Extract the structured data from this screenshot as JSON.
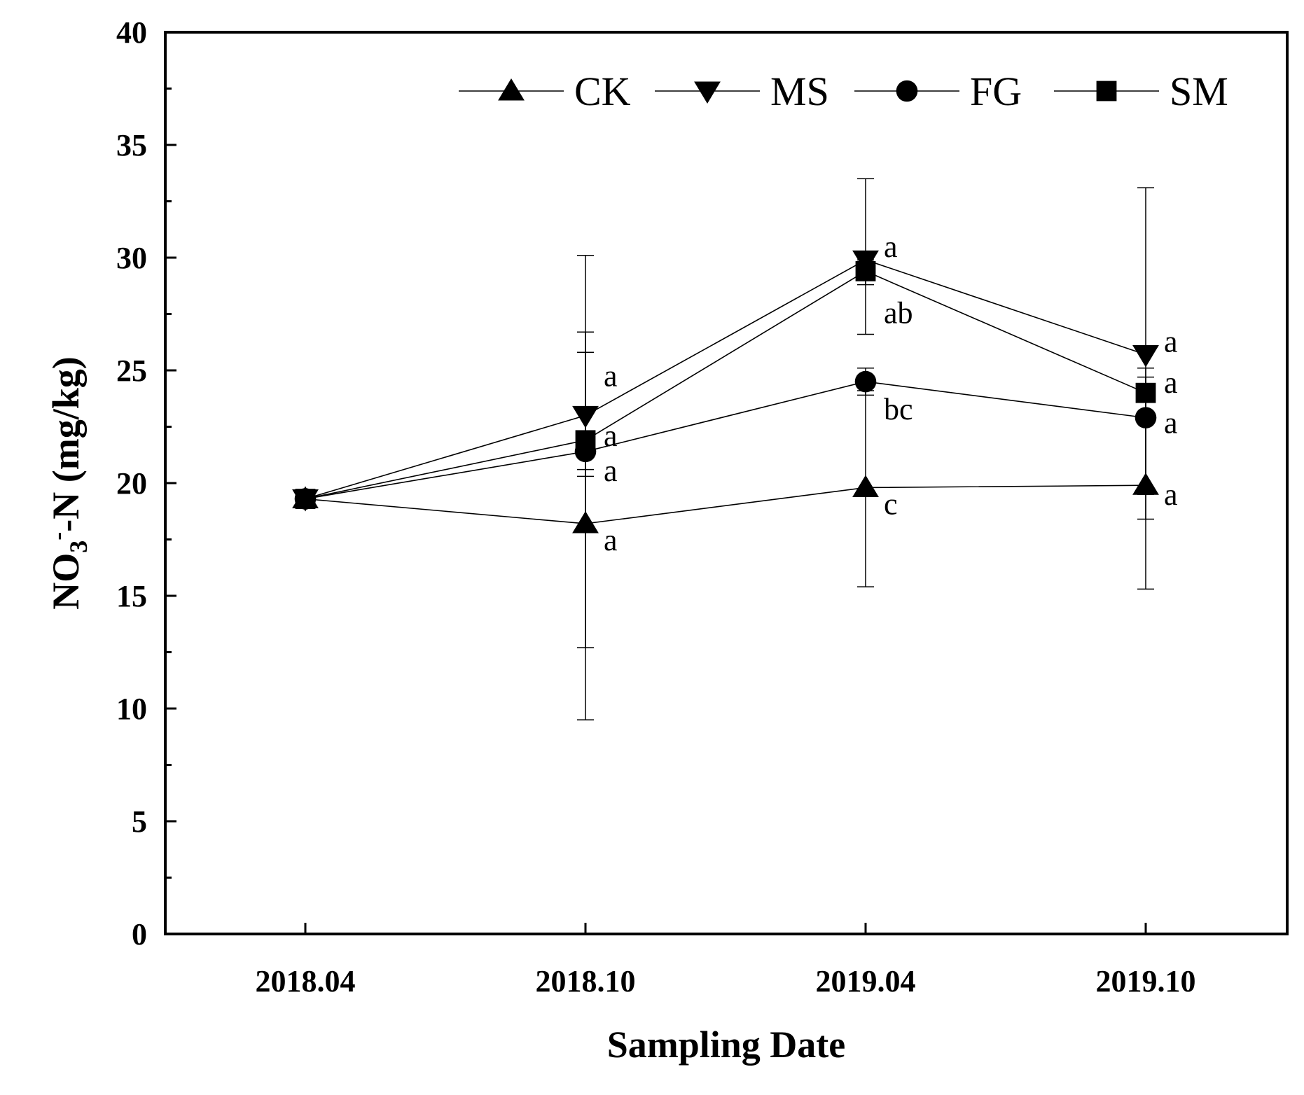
{
  "chart_data": {
    "type": "line",
    "title": "",
    "xlabel": "Sampling Date",
    "ylabel": {
      "prefix": "NO",
      "subscript": "3",
      "superscript": "-",
      "suffix": "-N (mg/kg)"
    },
    "categories": [
      "2018.04",
      "2018.10",
      "2019.04",
      "2019.10"
    ],
    "ylim": [
      0,
      40
    ],
    "yticks": [
      0,
      5,
      10,
      15,
      20,
      25,
      30,
      35,
      40
    ],
    "legend_position": "top-right",
    "series": [
      {
        "name": "CK",
        "marker": "triangle-up",
        "values": [
          19.3,
          18.2,
          19.8,
          19.9
        ],
        "error_low": [
          null,
          9.5,
          15.4,
          15.3
        ],
        "error_high": [
          null,
          26.7,
          24.1,
          24.4
        ],
        "labels": [
          null,
          "a",
          "c",
          "a"
        ]
      },
      {
        "name": "MS",
        "marker": "triangle-down",
        "values": [
          19.3,
          23.0,
          29.9,
          25.7
        ],
        "error_low": [
          null,
          12.7,
          26.6,
          18.4
        ],
        "error_high": [
          null,
          30.1,
          33.5,
          33.1
        ],
        "labels": [
          null,
          "a",
          "a",
          "a"
        ]
      },
      {
        "name": "FG",
        "marker": "circle",
        "values": [
          19.3,
          21.4,
          24.5,
          22.9
        ],
        "error_low": [
          null,
          20.6,
          23.9,
          19.5
        ],
        "error_high": [
          null,
          22.2,
          25.1,
          24.7
        ],
        "labels": [
          null,
          "a",
          "bc",
          "a"
        ]
      },
      {
        "name": "SM",
        "marker": "square",
        "values": [
          19.3,
          21.9,
          29.4,
          24.0
        ],
        "error_low": [
          null,
          20.3,
          28.8,
          22.9
        ],
        "error_high": [
          null,
          25.8,
          29.9,
          25.1
        ],
        "labels": [
          null,
          "a",
          "ab",
          "a"
        ]
      }
    ]
  }
}
